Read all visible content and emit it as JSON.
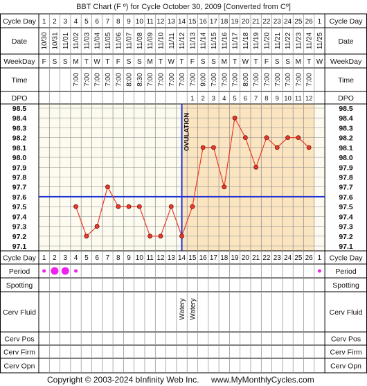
{
  "title": "BBT Chart (F º) for Cycle October 30, 2009  [Converted from Cº]",
  "row_labels": {
    "cycle_day": "Cycle Day",
    "date": "Date",
    "weekday": "WeekDay",
    "time": "Time",
    "dpo": "DPO",
    "period": "Period",
    "spotting": "Spotting",
    "cerv_fluid": "Cerv Fluid",
    "cerv_pos": "Cerv Pos",
    "cerv_firm": "Cerv Firm",
    "cerv_opn": "Cerv Opn"
  },
  "cycle_days": [
    "1",
    "2",
    "3",
    "4",
    "5",
    "6",
    "7",
    "8",
    "9",
    "10",
    "11",
    "12",
    "13",
    "14",
    "15",
    "16",
    "17",
    "18",
    "19",
    "20",
    "21",
    "22",
    "23",
    "24",
    "25",
    "26",
    "1"
  ],
  "dates": [
    "10/30",
    "10/31",
    "11/01",
    "11/02",
    "11/03",
    "11/04",
    "11/05",
    "11/06",
    "11/07",
    "11/08",
    "11/09",
    "11/10",
    "11/11",
    "11/12",
    "11/13",
    "11/14",
    "11/15",
    "11/16",
    "11/17",
    "11/18",
    "11/19",
    "11/20",
    "11/21",
    "11/22",
    "11/23",
    "11/24",
    "11/25"
  ],
  "weekdays": [
    "F",
    "S",
    "S",
    "M",
    "T",
    "W",
    "T",
    "F",
    "S",
    "S",
    "M",
    "T",
    "W",
    "T",
    "F",
    "S",
    "S",
    "M",
    "T",
    "W",
    "T",
    "F",
    "S",
    "S",
    "M",
    "T",
    "W"
  ],
  "times": [
    "",
    "",
    "",
    "7:00",
    "7:00",
    "7:00",
    "7:00",
    "7:00",
    "8:00",
    "8:30",
    "7:00",
    "7:00",
    "7:00",
    "7:00",
    "7:00",
    "9:00",
    "7:00",
    "7:00",
    "7:00",
    "8:00",
    "7:00",
    "7:00",
    "7:00",
    "7:00",
    "7:00",
    "7:00",
    ""
  ],
  "dpo": [
    "",
    "",
    "",
    "",
    "",
    "",
    "",
    "",
    "",
    "",
    "",
    "",
    "",
    "",
    "1",
    "2",
    "3",
    "4",
    "5",
    "6",
    "7",
    "8",
    "9",
    "10",
    "11",
    "12",
    ""
  ],
  "cerv_fluid": [
    "",
    "",
    "",
    "",
    "",
    "",
    "",
    "",
    "",
    "",
    "",
    "",
    "",
    "Watery",
    "Watery",
    "",
    "",
    "",
    "",
    "",
    "",
    "",
    "",
    "",
    "",
    "",
    ""
  ],
  "period": [
    1,
    2,
    2,
    1,
    0,
    0,
    0,
    0,
    0,
    0,
    0,
    0,
    0,
    0,
    0,
    0,
    0,
    0,
    0,
    0,
    0,
    0,
    0,
    0,
    0,
    0,
    1
  ],
  "ovulation_label": "OVULATION",
  "copyright": "Copyright © 2003-2024 bInfinity Web Inc.",
  "site": "www.MyMonthlyCycles.com",
  "colors": {
    "grid_bg_pre": "#fdfbf0",
    "grid_bg_post": "#fbe4c0",
    "line": "#e83a2a",
    "marker_fill": "#e83a2a",
    "coverline": "#1f32d6",
    "period_dot": "#ee22ee"
  },
  "chart_data": {
    "type": "line",
    "title": "BBT Chart (F º) for Cycle October 30, 2009  [Converted from Cº]",
    "xlabel": "Cycle Day",
    "ylabel": "",
    "categories": [
      "10/30",
      "10/31",
      "11/01",
      "11/02",
      "11/03",
      "11/04",
      "11/05",
      "11/06",
      "11/07",
      "11/08",
      "11/09",
      "11/10",
      "11/11",
      "11/12",
      "11/13",
      "11/14",
      "11/15",
      "11/16",
      "11/17",
      "11/18",
      "11/19",
      "11/20",
      "11/21",
      "11/22",
      "11/23",
      "11/24",
      "11/25"
    ],
    "yticks": [
      "98.5",
      "98.4",
      "98.3",
      "98.2",
      "98.1",
      "98.0",
      "97.9",
      "97.8",
      "97.7",
      "97.6",
      "97.5",
      "97.4",
      "97.3",
      "97.2",
      "97.1"
    ],
    "ylim": [
      97.1,
      98.5
    ],
    "series": [
      {
        "values": [
          null,
          null,
          null,
          97.5,
          97.2,
          97.3,
          97.7,
          97.5,
          97.5,
          97.5,
          97.2,
          97.2,
          97.5,
          97.2,
          97.5,
          98.1,
          98.1,
          97.7,
          98.4,
          98.2,
          97.9,
          98.2,
          98.1,
          98.2,
          98.2,
          98.1,
          null
        ]
      }
    ],
    "coverline": 97.6,
    "ovulation_day": 14,
    "grid": true
  }
}
